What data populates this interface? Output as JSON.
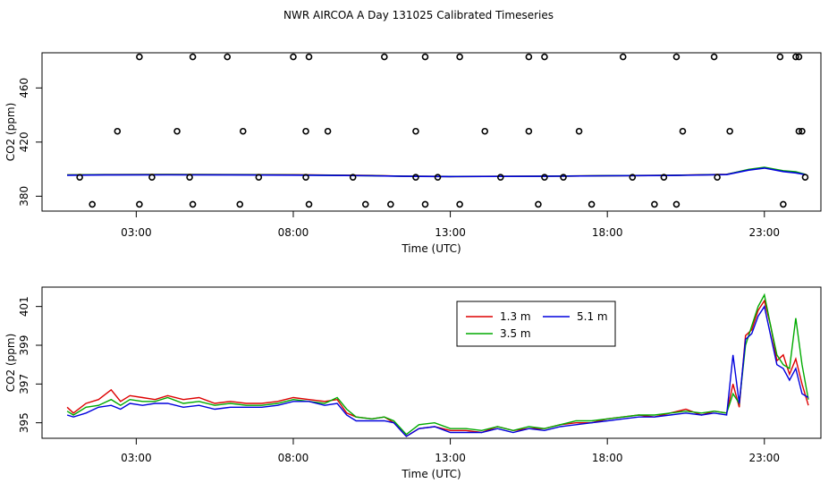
{
  "title": "NWR AIRCOA A  Day 131025  Calibrated Timeseries",
  "chart_data": [
    {
      "type": "scatter",
      "xlabel": "Time (UTC)",
      "ylabel": "CO2 (ppm)",
      "xlim": [
        0,
        24.8
      ],
      "ylim": [
        369,
        486
      ],
      "x_ticks": [
        3,
        8,
        13,
        18,
        23
      ],
      "x_tick_labels": [
        "03:00",
        "08:00",
        "13:00",
        "18:00",
        "23:00"
      ],
      "y_ticks": [
        380,
        420,
        460
      ],
      "y_tick_labels": [
        "380",
        "420",
        "460"
      ],
      "scatter_points": {
        "x": [
          1.6,
          3.1,
          4.8,
          6.3,
          8.5,
          10.3,
          11.1,
          12.2,
          13.3,
          15.8,
          17.5,
          19.5,
          20.2,
          23.6,
          1.2,
          3.5,
          4.7,
          6.9,
          8.4,
          9.9,
          11.9,
          12.6,
          14.6,
          16.0,
          16.6,
          18.8,
          19.8,
          21.5,
          2.4,
          4.3,
          6.4,
          8.4,
          9.1,
          11.9,
          14.1,
          15.5,
          17.1,
          20.4,
          21.9,
          24.2,
          24.0,
          24.3,
          24.1
        ],
        "y": [
          374,
          374,
          374,
          374,
          374,
          374,
          374,
          374,
          374,
          374,
          374,
          374,
          374,
          374,
          394,
          394,
          394,
          394,
          394,
          394,
          394,
          394,
          394,
          394,
          394,
          394,
          394,
          394,
          428,
          428,
          428,
          428,
          428,
          428,
          428,
          428,
          428,
          428,
          428,
          428,
          483,
          394,
          428
        ]
      },
      "scatter_points_top": {
        "x": [
          3.1,
          4.8,
          5.9,
          8.0,
          8.5,
          10.9,
          12.2,
          13.3,
          15.5,
          16.0,
          18.5,
          20.2,
          21.4,
          23.5,
          24.1
        ],
        "y": [
          483,
          483,
          483,
          483,
          483,
          483,
          483,
          483,
          483,
          483,
          483,
          483,
          483,
          483,
          483
        ]
      },
      "series": [
        {
          "name": "1.3 m",
          "color": "#dd0000",
          "x": [
            0.8,
            2,
            4,
            6,
            8,
            9.6,
            10.5,
            11.5,
            13,
            16,
            18,
            20,
            21.8,
            22.5,
            23,
            23.6,
            24,
            24.3
          ],
          "values": [
            395.8,
            396,
            396.1,
            396,
            395.9,
            395.5,
            395.3,
            394.8,
            394.6,
            394.8,
            395.2,
            395.4,
            396.2,
            399.5,
            401,
            398.5,
            397.5,
            396
          ]
        },
        {
          "name": "3.5 m",
          "color": "#00aa00",
          "x": [
            0.8,
            2,
            4,
            6,
            8,
            9.6,
            10.5,
            11.5,
            13,
            16,
            18,
            20,
            21.8,
            22.5,
            23,
            23.6,
            24,
            24.3
          ],
          "values": [
            395.7,
            395.9,
            396,
            395.9,
            395.8,
            395.4,
            395.2,
            394.8,
            394.6,
            394.8,
            395.2,
            395.4,
            396.1,
            399.8,
            401.4,
            398.8,
            398,
            396.2
          ]
        },
        {
          "name": "5.1 m",
          "color": "#0000dd",
          "x": [
            0.8,
            2,
            4,
            6,
            8,
            9.6,
            10.5,
            11.5,
            13,
            16,
            18,
            20,
            21.8,
            22.5,
            23,
            23.6,
            24,
            24.3
          ],
          "values": [
            395.5,
            395.7,
            395.8,
            395.7,
            395.6,
            395.3,
            395.1,
            394.7,
            394.5,
            394.7,
            395.1,
            395.3,
            396,
            399.3,
            400.8,
            398.2,
            397.2,
            396
          ]
        }
      ]
    },
    {
      "type": "line",
      "xlabel": "Time (UTC)",
      "ylabel": "CO2 (ppm)",
      "xlim": [
        0,
        24.8
      ],
      "ylim": [
        394.2,
        402
      ],
      "x_ticks": [
        3,
        8,
        13,
        18,
        23
      ],
      "x_tick_labels": [
        "03:00",
        "08:00",
        "13:00",
        "18:00",
        "23:00"
      ],
      "y_ticks": [
        395,
        397,
        399,
        401
      ],
      "y_tick_labels": [
        "395",
        "397",
        "399",
        "401"
      ],
      "legend": {
        "position": "top-center",
        "entries": [
          "1.3 m",
          "5.1 m",
          "3.5 m"
        ]
      },
      "series": [
        {
          "name": "1.3 m",
          "color": "#dd0000",
          "x": [
            0.8,
            1.0,
            1.4,
            1.8,
            2.2,
            2.5,
            2.8,
            3.2,
            3.6,
            4.0,
            4.5,
            5.0,
            5.5,
            6.0,
            6.5,
            7.0,
            7.5,
            8.0,
            8.5,
            9.0,
            9.4,
            9.7,
            10.0,
            10.5,
            10.9,
            11.2,
            11.6,
            12.0,
            12.5,
            13.0,
            13.5,
            14.0,
            14.5,
            15.0,
            15.5,
            16.0,
            16.5,
            17.0,
            17.5,
            18.0,
            18.5,
            19.0,
            19.5,
            20.0,
            20.5,
            21.0,
            21.4,
            21.8,
            22.0,
            22.2,
            22.4,
            22.6,
            22.8,
            23.0,
            23.2,
            23.4,
            23.6,
            23.8,
            24.0,
            24.2,
            24.4
          ],
          "values": [
            395.8,
            395.5,
            396.0,
            396.2,
            396.7,
            396.1,
            396.4,
            396.3,
            396.2,
            396.4,
            396.2,
            396.3,
            396.0,
            396.1,
            396.0,
            396.0,
            396.1,
            396.3,
            396.2,
            396.1,
            396.2,
            395.5,
            395.3,
            395.2,
            395.3,
            395.0,
            394.3,
            394.7,
            394.8,
            394.6,
            394.6,
            394.5,
            394.8,
            394.6,
            394.7,
            394.7,
            394.9,
            395.0,
            395.0,
            395.2,
            395.3,
            395.4,
            395.3,
            395.5,
            395.7,
            395.4,
            395.6,
            395.5,
            397.0,
            395.8,
            399.5,
            399.8,
            400.8,
            401.3,
            400.0,
            398.2,
            398.5,
            397.5,
            398.3,
            397.0,
            395.9
          ]
        },
        {
          "name": "3.5 m",
          "color": "#00aa00",
          "x": [
            0.8,
            1.0,
            1.4,
            1.8,
            2.2,
            2.5,
            2.8,
            3.2,
            3.6,
            4.0,
            4.5,
            5.0,
            5.5,
            6.0,
            6.5,
            7.0,
            7.5,
            8.0,
            8.5,
            9.0,
            9.4,
            9.7,
            10.0,
            10.5,
            10.9,
            11.2,
            11.6,
            12.0,
            12.5,
            13.0,
            13.5,
            14.0,
            14.5,
            15.0,
            15.5,
            16.0,
            16.5,
            17.0,
            17.5,
            18.0,
            18.5,
            19.0,
            19.5,
            20.0,
            20.5,
            21.0,
            21.4,
            21.8,
            22.0,
            22.2,
            22.4,
            22.6,
            22.8,
            23.0,
            23.2,
            23.4,
            23.6,
            23.8,
            24.0,
            24.2,
            24.4
          ],
          "values": [
            395.6,
            395.4,
            395.8,
            395.9,
            396.2,
            395.9,
            396.2,
            396.1,
            396.1,
            396.3,
            396.0,
            396.1,
            395.9,
            396.0,
            395.9,
            395.9,
            396.0,
            396.2,
            396.1,
            396.0,
            396.3,
            395.7,
            395.3,
            395.2,
            395.3,
            395.1,
            394.4,
            394.9,
            395.0,
            394.7,
            394.7,
            394.6,
            394.8,
            394.6,
            394.8,
            394.7,
            394.9,
            395.1,
            395.1,
            395.2,
            395.3,
            395.4,
            395.4,
            395.5,
            395.6,
            395.5,
            395.6,
            395.5,
            396.5,
            396.0,
            399.0,
            400.0,
            401.0,
            401.6,
            400.0,
            398.5,
            398.0,
            397.8,
            400.4,
            398.0,
            396.2
          ]
        },
        {
          "name": "5.1 m",
          "color": "#0000dd",
          "x": [
            0.8,
            1.0,
            1.4,
            1.8,
            2.2,
            2.5,
            2.8,
            3.2,
            3.6,
            4.0,
            4.5,
            5.0,
            5.5,
            6.0,
            6.5,
            7.0,
            7.5,
            8.0,
            8.5,
            9.0,
            9.4,
            9.7,
            10.0,
            10.5,
            10.9,
            11.2,
            11.6,
            12.0,
            12.5,
            13.0,
            13.5,
            14.0,
            14.5,
            15.0,
            15.5,
            16.0,
            16.5,
            17.0,
            17.5,
            18.0,
            18.5,
            19.0,
            19.5,
            20.0,
            20.5,
            21.0,
            21.4,
            21.8,
            22.0,
            22.2,
            22.4,
            22.6,
            22.8,
            23.0,
            23.2,
            23.4,
            23.6,
            23.8,
            24.0,
            24.2,
            24.4
          ],
          "values": [
            395.4,
            395.3,
            395.5,
            395.8,
            395.9,
            395.7,
            396.0,
            395.9,
            396.0,
            396.0,
            395.8,
            395.9,
            395.7,
            395.8,
            395.8,
            395.8,
            395.9,
            396.1,
            396.1,
            395.9,
            396.0,
            395.4,
            395.1,
            395.1,
            395.1,
            395.0,
            394.3,
            394.7,
            394.8,
            394.5,
            394.5,
            394.5,
            394.7,
            394.5,
            394.7,
            394.6,
            394.8,
            394.9,
            395.0,
            395.1,
            395.2,
            395.3,
            395.3,
            395.4,
            395.5,
            395.4,
            395.5,
            395.4,
            398.5,
            396.0,
            399.3,
            399.6,
            400.5,
            401.0,
            399.5,
            398.0,
            397.8,
            397.2,
            397.8,
            396.5,
            396.3
          ]
        }
      ]
    }
  ]
}
